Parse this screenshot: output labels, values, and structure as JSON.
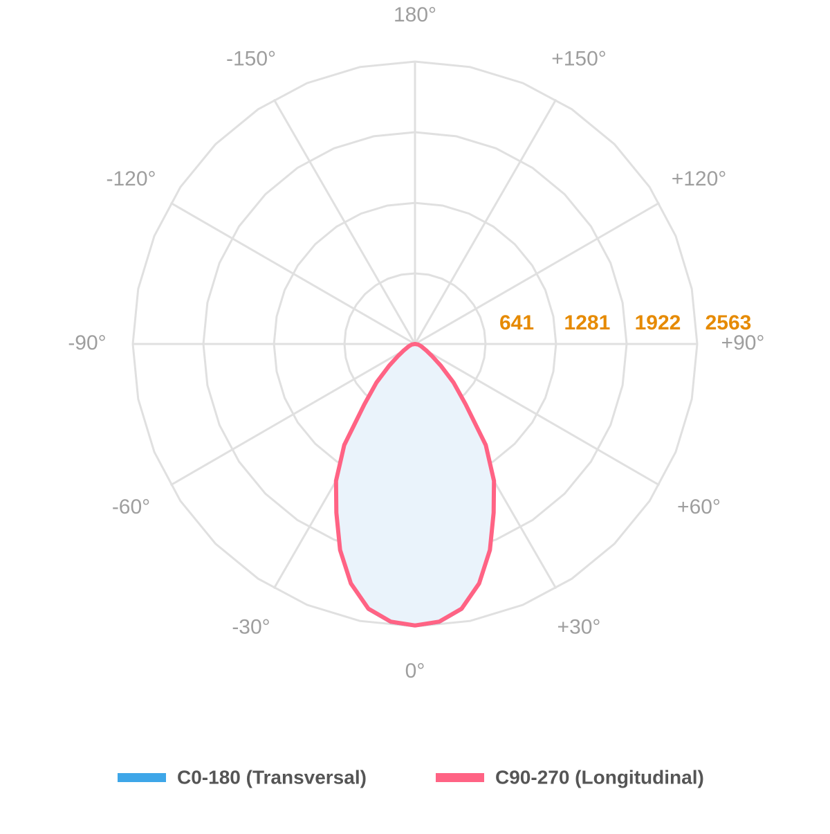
{
  "chart_data": {
    "type": "polar",
    "angle_ticks": [
      {
        "value": 180,
        "label": "180°"
      },
      {
        "value": 150,
        "label": "+150°"
      },
      {
        "value": 120,
        "label": "+120°"
      },
      {
        "value": 90,
        "label": "+90°"
      },
      {
        "value": 60,
        "label": "+60°"
      },
      {
        "value": 30,
        "label": "+30°"
      },
      {
        "value": 0,
        "label": "0°"
      },
      {
        "value": -30,
        "label": "-30°"
      },
      {
        "value": -60,
        "label": "-60°"
      },
      {
        "value": -90,
        "label": "-90°"
      },
      {
        "value": -120,
        "label": "-120°"
      },
      {
        "value": -150,
        "label": "-150°"
      }
    ],
    "rlim": [
      0,
      2563
    ],
    "rticks": [
      641,
      1281,
      1922,
      2563
    ],
    "x": [
      -90,
      -80,
      -70,
      -60,
      -55,
      -50,
      -45,
      -40,
      -35,
      -30,
      -25,
      -20,
      -15,
      -10,
      -5,
      0,
      5,
      10,
      15,
      20,
      25,
      30,
      35,
      40,
      45,
      50,
      55,
      60,
      70,
      80,
      90
    ],
    "series": [
      {
        "name": "C0-180 (Transversal)",
        "color": "#3ea6e8",
        "fill": "#eaf3fb",
        "values": [
          0,
          30,
          60,
          125,
          190,
          310,
          500,
          720,
          1130,
          1445,
          1700,
          2000,
          2260,
          2450,
          2540,
          2563,
          2540,
          2450,
          2260,
          2000,
          1700,
          1445,
          1130,
          720,
          500,
          310,
          190,
          125,
          60,
          30,
          0
        ]
      },
      {
        "name": "C90-270 (Longitudinal)",
        "color": "#ff6384",
        "values": [
          0,
          30,
          60,
          120,
          185,
          305,
          495,
          715,
          1120,
          1435,
          1690,
          1990,
          2250,
          2440,
          2530,
          2555,
          2530,
          2440,
          2250,
          1990,
          1690,
          1435,
          1120,
          715,
          495,
          305,
          185,
          120,
          60,
          30,
          0
        ]
      }
    ],
    "grid": true
  }
}
